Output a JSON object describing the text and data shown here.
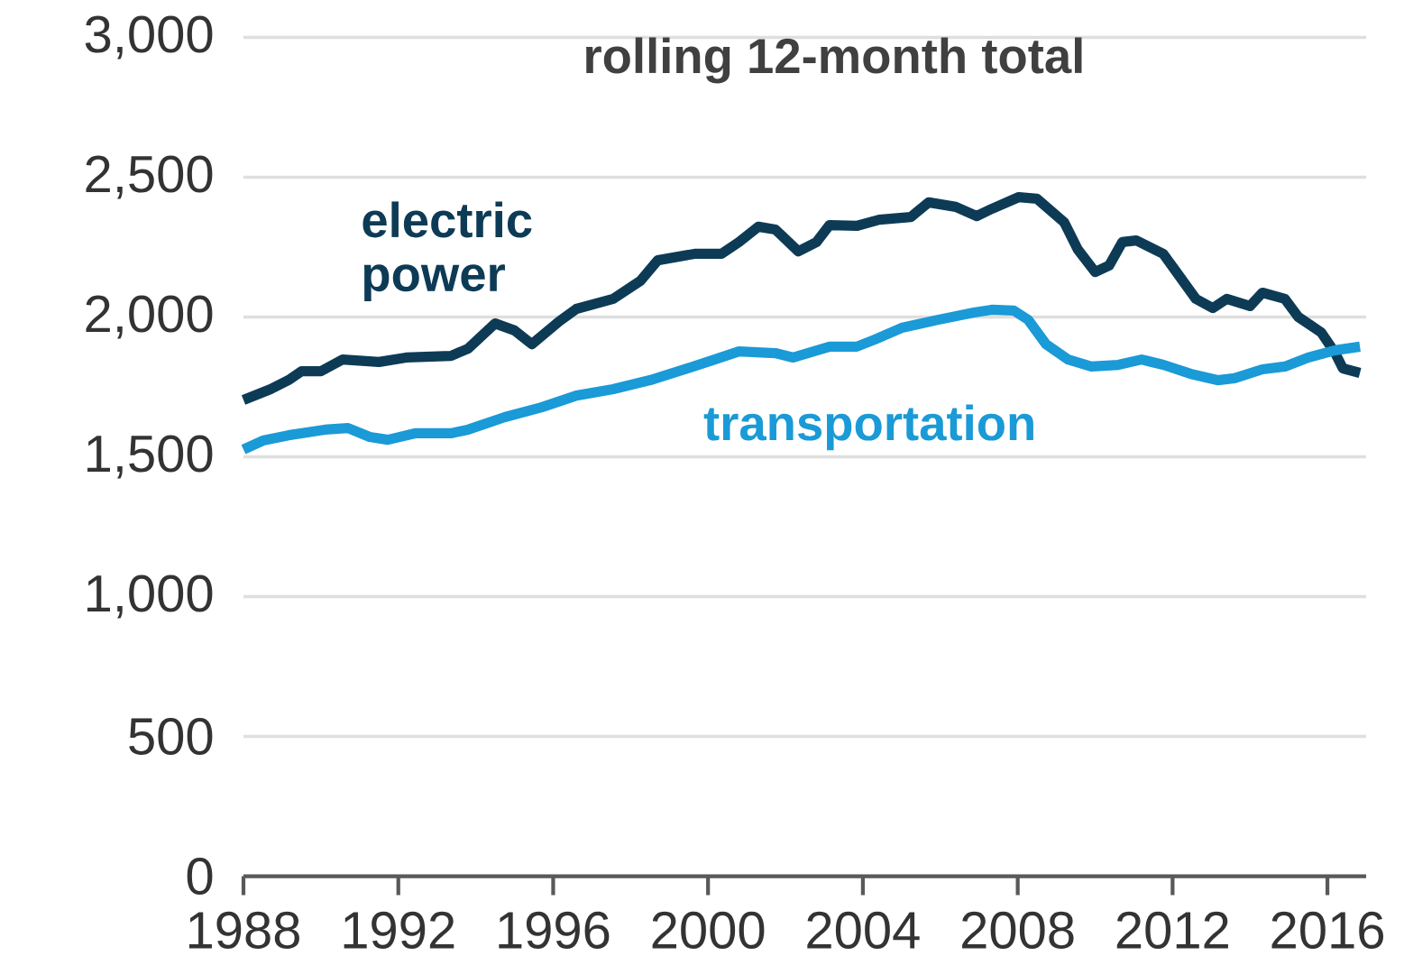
{
  "chart_data": {
    "type": "line",
    "title": "rolling 12-month total",
    "xlim": [
      1988,
      2017
    ],
    "xticks": [
      1988,
      1992,
      1996,
      2000,
      2004,
      2008,
      2012,
      2016
    ],
    "ylim": [
      0,
      3000
    ],
    "yticks": [
      {
        "value": 0,
        "label": "0"
      },
      {
        "value": 500,
        "label": "500"
      },
      {
        "value": 1000,
        "label": "1,000"
      },
      {
        "value": 1500,
        "label": "1,500"
      },
      {
        "value": 2000,
        "label": "2,000"
      },
      {
        "value": 2500,
        "label": "2,500"
      },
      {
        "value": 3000,
        "label": "3,000"
      }
    ],
    "grid": "y",
    "legend": false,
    "series": [
      {
        "name": "electric power",
        "color": "#0d3b56",
        "x": [
          1988.0,
          1988.7,
          1989.16,
          1989.5,
          1990.0,
          1990.56,
          1991.5,
          1992.2,
          1993.36,
          1993.8,
          1994.5,
          1995.0,
          1995.45,
          1996.15,
          1996.6,
          1997.55,
          1998.25,
          1998.7,
          1999.65,
          2000.35,
          2000.8,
          2001.3,
          2001.74,
          2002.33,
          2002.8,
          2003.14,
          2003.84,
          2004.42,
          2005.24,
          2005.7,
          2006.4,
          2006.94,
          2007.33,
          2008.03,
          2008.5,
          2009.2,
          2009.55,
          2010.0,
          2010.36,
          2010.7,
          2011.06,
          2011.76,
          2012.1,
          2012.6,
          2013.04,
          2013.4,
          2014.0,
          2014.32,
          2014.9,
          2015.25,
          2015.84,
          2016.2,
          2016.4,
          2016.84
        ],
        "values": [
          1703,
          1742,
          1774,
          1806,
          1806,
          1848,
          1839,
          1855,
          1861,
          1887,
          1977,
          1952,
          1903,
          1984,
          2029,
          2065,
          2129,
          2203,
          2226,
          2226,
          2268,
          2323,
          2313,
          2235,
          2268,
          2329,
          2326,
          2348,
          2358,
          2410,
          2394,
          2361,
          2387,
          2429,
          2423,
          2339,
          2242,
          2161,
          2184,
          2268,
          2274,
          2226,
          2161,
          2065,
          2032,
          2065,
          2039,
          2087,
          2065,
          2000,
          1945,
          1871,
          1816,
          1800
        ]
      },
      {
        "name": "transportation",
        "color": "#1a9ad6",
        "x": [
          1988.0,
          1988.5,
          1989.16,
          1990.1,
          1990.7,
          1991.26,
          1991.73,
          1992.43,
          1993.36,
          1993.8,
          1994.75,
          1995.7,
          1996.6,
          1997.55,
          1998.5,
          1999.4,
          2000.1,
          2000.8,
          2001.74,
          2002.2,
          2003.14,
          2003.84,
          2004.3,
          2005.0,
          2005.94,
          2006.87,
          2007.33,
          2007.9,
          2008.27,
          2008.73,
          2009.3,
          2009.9,
          2010.6,
          2011.2,
          2011.76,
          2012.46,
          2013.16,
          2013.6,
          2014.32,
          2014.9,
          2015.5,
          2016.2,
          2016.84
        ],
        "values": [
          1526,
          1558,
          1577,
          1597,
          1603,
          1571,
          1561,
          1584,
          1584,
          1597,
          1642,
          1677,
          1719,
          1742,
          1774,
          1813,
          1845,
          1877,
          1871,
          1855,
          1894,
          1894,
          1919,
          1961,
          1990,
          2016,
          2026,
          2023,
          1990,
          1903,
          1848,
          1823,
          1829,
          1848,
          1829,
          1797,
          1774,
          1781,
          1813,
          1823,
          1855,
          1881,
          1894
        ]
      }
    ]
  }
}
